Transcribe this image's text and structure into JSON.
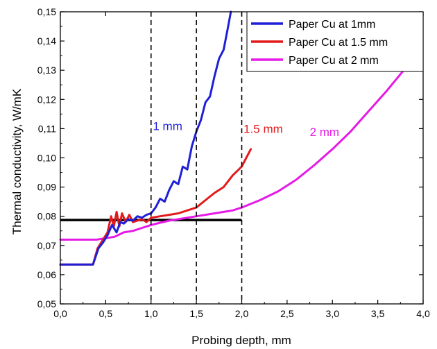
{
  "chart_data": {
    "type": "line",
    "xlabel": "Probing depth, mm",
    "ylabel": "Thermal conductivity, W/mK",
    "xlim": [
      0.0,
      4.0
    ],
    "ylim": [
      0.05,
      0.15
    ],
    "x_ticks": [
      "0,0",
      "0,5",
      "1,0",
      "1,5",
      "2,0",
      "2,5",
      "3,0",
      "3,5",
      "4,0"
    ],
    "y_ticks": [
      "0,05",
      "0,06",
      "0,07",
      "0,08",
      "0,09",
      "0,10",
      "0,11",
      "0,12",
      "0,13",
      "0,14",
      "0,15"
    ],
    "legend_position": "top-right",
    "grid": false,
    "series": [
      {
        "name": "Paper Cu at 1mm",
        "color": "#1f1fd8",
        "x": [
          0.0,
          0.36,
          0.42,
          0.47,
          0.52,
          0.57,
          0.62,
          0.66,
          0.7,
          0.75,
          0.8,
          0.85,
          0.9,
          0.95,
          1.0,
          1.05,
          1.1,
          1.15,
          1.2,
          1.25,
          1.3,
          1.35,
          1.4,
          1.45,
          1.5,
          1.55,
          1.6,
          1.65,
          1.7,
          1.75,
          1.8,
          1.85,
          1.88
        ],
        "y": [
          0.0635,
          0.0635,
          0.069,
          0.071,
          0.0735,
          0.077,
          0.0745,
          0.078,
          0.0775,
          0.079,
          0.0785,
          0.08,
          0.0795,
          0.0805,
          0.081,
          0.083,
          0.086,
          0.085,
          0.089,
          0.092,
          0.091,
          0.097,
          0.096,
          0.104,
          0.109,
          0.113,
          0.119,
          0.121,
          0.128,
          0.134,
          0.137,
          0.145,
          0.15
        ]
      },
      {
        "name": "Paper Cu at 1.5 mm",
        "color": "#e31a1c",
        "x": [
          0.0,
          0.36,
          0.41,
          0.46,
          0.52,
          0.56,
          0.59,
          0.62,
          0.65,
          0.68,
          0.72,
          0.76,
          0.8,
          0.85,
          0.9,
          0.95,
          1.0,
          1.1,
          1.2,
          1.3,
          1.4,
          1.5,
          1.6,
          1.7,
          1.8,
          1.9,
          2.0,
          2.05,
          2.1
        ],
        "y": [
          0.0635,
          0.0635,
          0.069,
          0.0715,
          0.0745,
          0.08,
          0.0765,
          0.0815,
          0.0765,
          0.081,
          0.078,
          0.0805,
          0.078,
          0.0785,
          0.079,
          0.078,
          0.0795,
          0.08,
          0.0805,
          0.081,
          0.082,
          0.083,
          0.0855,
          0.088,
          0.09,
          0.094,
          0.097,
          0.1,
          0.103
        ]
      },
      {
        "name": "Paper Cu at 2 mm",
        "color": "#e619e6",
        "x": [
          0.0,
          0.3,
          0.4,
          0.5,
          0.6,
          0.7,
          0.8,
          0.9,
          1.0,
          1.1,
          1.2,
          1.3,
          1.4,
          1.5,
          1.6,
          1.7,
          1.8,
          1.9,
          2.0,
          2.2,
          2.4,
          2.6,
          2.8,
          3.0,
          3.2,
          3.4,
          3.6,
          3.8
        ],
        "y": [
          0.072,
          0.072,
          0.072,
          0.0725,
          0.073,
          0.0745,
          0.075,
          0.076,
          0.077,
          0.0778,
          0.0785,
          0.079,
          0.0795,
          0.08,
          0.0805,
          0.081,
          0.0815,
          0.082,
          0.083,
          0.0855,
          0.0885,
          0.0925,
          0.0975,
          0.103,
          0.109,
          0.116,
          0.123,
          0.1305
        ]
      }
    ],
    "reference_line": {
      "y": 0.0787,
      "x_start": 0.0,
      "x_end": 2.0,
      "color": "#000000"
    },
    "vertical_markers": [
      1.0,
      1.5,
      2.0
    ],
    "annotations": [
      {
        "text": "1 mm",
        "x": 1.02,
        "y": 0.1095,
        "color": "#1f1fd8"
      },
      {
        "text": "1.5 mm",
        "x": 2.02,
        "y": 0.1085,
        "color": "#e31a1c"
      },
      {
        "text": "2 mm",
        "x": 2.75,
        "y": 0.1075,
        "color": "#e619e6"
      }
    ]
  }
}
